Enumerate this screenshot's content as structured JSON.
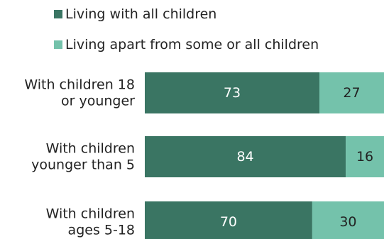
{
  "chart_data": {
    "type": "bar",
    "orientation": "horizontal",
    "stacked": true,
    "categories": [
      [
        "With children 18",
        "or younger"
      ],
      [
        "With children",
        "younger than 5"
      ],
      [
        "With children",
        "ages 5-18"
      ]
    ],
    "series": [
      {
        "name": "Living with all children",
        "values": [
          73,
          84,
          70
        ],
        "color": "#3a7563",
        "label_color": "#ffffff"
      },
      {
        "name": "Living apart from some or all children",
        "values": [
          27,
          16,
          30
        ],
        "color": "#74c2ab",
        "label_color": "#222222"
      }
    ],
    "xlim": [
      0,
      100
    ],
    "grid": false,
    "legend_position": "top"
  }
}
